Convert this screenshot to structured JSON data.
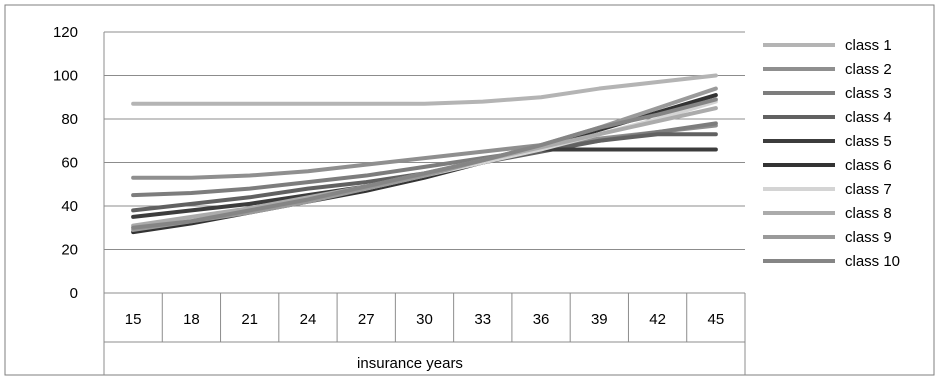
{
  "chart_data": {
    "type": "line",
    "title": "",
    "xlabel": "insurance years",
    "ylabel": "",
    "categories": [
      "15",
      "18",
      "21",
      "24",
      "27",
      "30",
      "33",
      "36",
      "39",
      "42",
      "45"
    ],
    "ylim": [
      0,
      120
    ],
    "yticks": [
      "0",
      "20",
      "40",
      "60",
      "80",
      "100",
      "120"
    ],
    "grid": true,
    "legend_position": "right",
    "series": [
      {
        "name": "class 1",
        "color": "#b4b4b4",
        "values": [
          87,
          87,
          87,
          87,
          87,
          87,
          88,
          90,
          94,
          97,
          100
        ]
      },
      {
        "name": "class 2",
        "color": "#8f8f8f",
        "values": [
          53,
          53,
          54,
          56,
          59,
          62,
          65,
          68,
          71,
          74,
          77
        ]
      },
      {
        "name": "class 3",
        "color": "#7d7d7d",
        "values": [
          45,
          46,
          48,
          51,
          54,
          58,
          62,
          66,
          70,
          74,
          78
        ]
      },
      {
        "name": "class 4",
        "color": "#616161",
        "values": [
          38,
          41,
          44,
          48,
          51,
          55,
          60,
          65,
          70,
          73,
          73
        ]
      },
      {
        "name": "class 5",
        "color": "#3c3c3c",
        "values": [
          35,
          38,
          41,
          45,
          49,
          54,
          60,
          66,
          66,
          66,
          66
        ]
      },
      {
        "name": "class 6",
        "color": "#333333",
        "values": [
          28,
          32,
          37,
          42,
          47,
          53,
          60,
          67,
          75,
          83,
          91
        ]
      },
      {
        "name": "class 7",
        "color": "#d4d4d4",
        "values": [
          30,
          34,
          38,
          43,
          48,
          54,
          60,
          66,
          73,
          80,
          88
        ]
      },
      {
        "name": "class 8",
        "color": "#ababab",
        "values": [
          31,
          35,
          39,
          44,
          49,
          55,
          61,
          67,
          73,
          79,
          85
        ]
      },
      {
        "name": "class 9",
        "color": "#9a9a9a",
        "values": [
          29,
          33,
          37,
          42,
          48,
          54,
          61,
          68,
          76,
          85,
          94
        ]
      },
      {
        "name": "class 10",
        "color": "#858585",
        "values": [
          30,
          33,
          38,
          43,
          49,
          55,
          61,
          68,
          76,
          82,
          89
        ]
      }
    ]
  }
}
